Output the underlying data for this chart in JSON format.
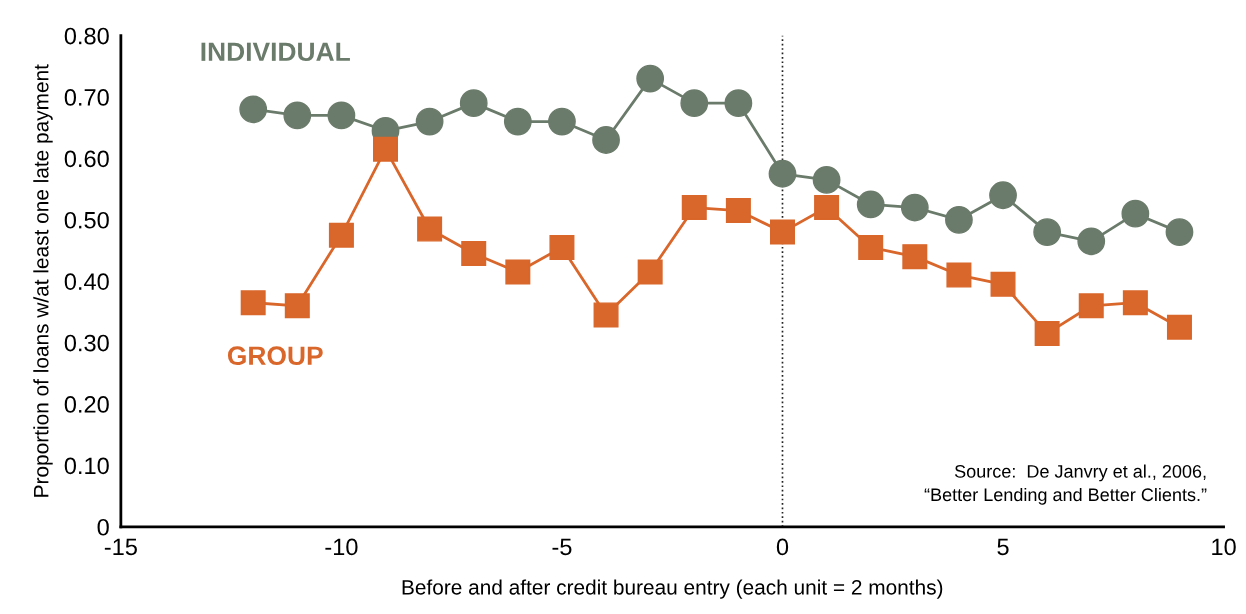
{
  "chart_data": {
    "type": "line",
    "xlabel": "Before and after credit bureau entry (each unit = 2 months)",
    "ylabel": "Proportion of loans w/at least one late payment",
    "x": [
      -12,
      -11,
      -10,
      -9,
      -8,
      -7,
      -6,
      -5,
      -4,
      -3,
      -2,
      -1,
      0,
      1,
      2,
      3,
      4,
      5,
      6,
      7,
      8,
      9
    ],
    "series": [
      {
        "name": "INDIVIDUAL",
        "color": "#6b7b6b",
        "marker": "circle",
        "values": [
          0.68,
          0.67,
          0.67,
          0.645,
          0.66,
          0.69,
          0.66,
          0.66,
          0.63,
          0.73,
          0.69,
          0.69,
          0.575,
          0.565,
          0.525,
          0.52,
          0.5,
          0.54,
          0.48,
          0.465,
          0.51,
          0.48
        ]
      },
      {
        "name": "GROUP",
        "color": "#d9662a",
        "marker": "square",
        "values": [
          0.365,
          0.36,
          0.475,
          0.615,
          0.485,
          0.445,
          0.415,
          0.455,
          0.345,
          0.415,
          0.52,
          0.515,
          0.48,
          0.52,
          0.455,
          0.44,
          0.41,
          0.395,
          0.315,
          0.36,
          0.365,
          0.325
        ]
      }
    ],
    "xlim": [
      -15,
      10
    ],
    "xticks": [
      -15,
      -10,
      -5,
      0,
      5,
      10
    ],
    "ylim": [
      0,
      0.8
    ],
    "yticks": [
      {
        "value": 0,
        "label": "0"
      },
      {
        "value": 0.1,
        "label": "0.10"
      },
      {
        "value": 0.2,
        "label": "0.20"
      },
      {
        "value": 0.3,
        "label": "0.30"
      },
      {
        "value": 0.4,
        "label": "0.40"
      },
      {
        "value": 0.5,
        "label": "0.50"
      },
      {
        "value": 0.6,
        "label": "0.60"
      },
      {
        "value": 0.7,
        "label": "0.70"
      },
      {
        "value": 0.8,
        "label": "0.80"
      }
    ],
    "ref_lines": [
      {
        "axis": "x",
        "value": 0,
        "label": null,
        "line_style": "dotted",
        "color": "#222222"
      }
    ],
    "annotations": [
      "Source:  De Janvry et al., 2006,\n“Better Lending and Better Clients.”"
    ],
    "grid": false,
    "legend": false,
    "line_style": "solid"
  }
}
